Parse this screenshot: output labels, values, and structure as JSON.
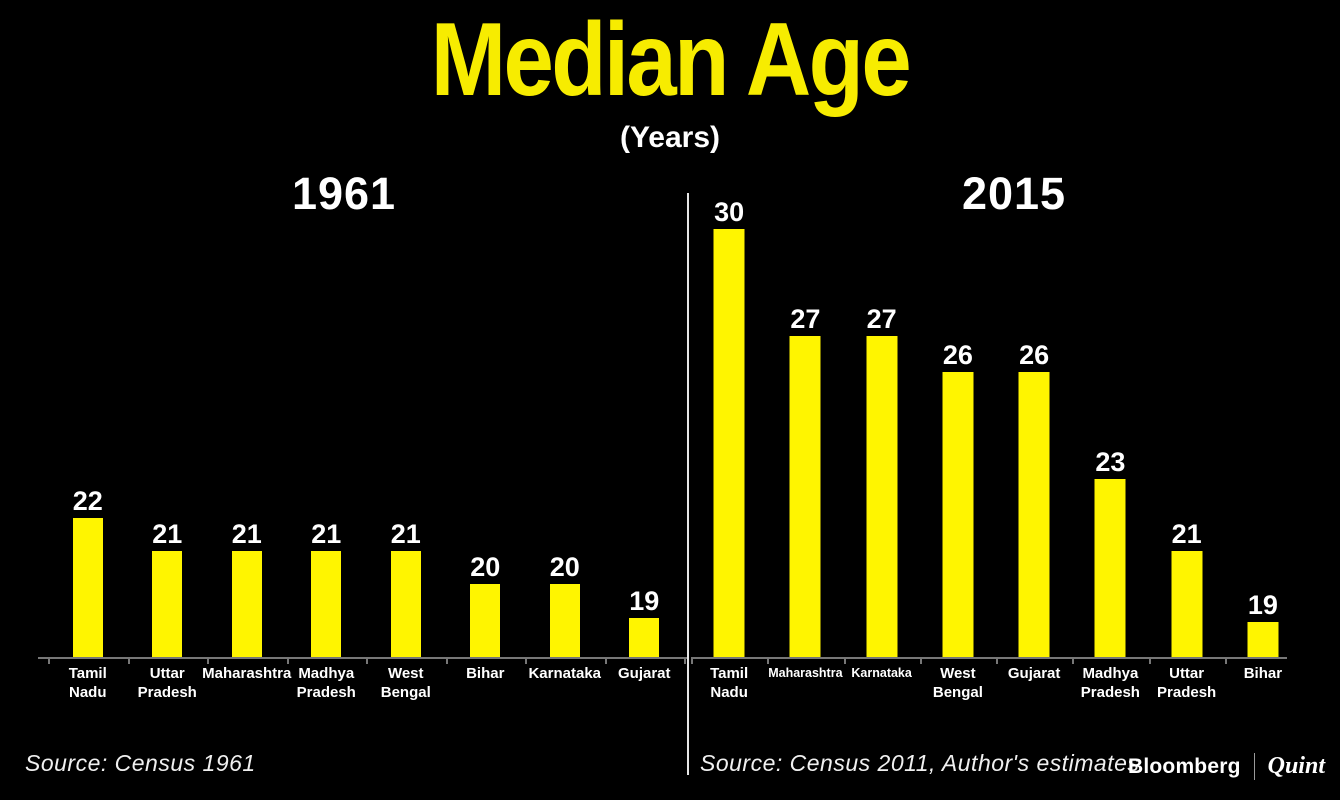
{
  "header": {
    "title": "Median Age",
    "subtitle": "(Years)"
  },
  "chart_data": [
    {
      "type": "bar",
      "title": "1961",
      "categories": [
        "Tamil Nadu",
        "Uttar Pradesh",
        "Maharashtra",
        "Madhya Pradesh",
        "West Bengal",
        "Bihar",
        "Karnataka",
        "Gujarat"
      ],
      "tick_labels": [
        "Tamil\nNadu",
        "Uttar\nPradesh",
        "Maharashtra",
        "Madhya\nPradesh",
        "West\nBengal",
        "Bihar",
        "Karnataka",
        "Gujarat"
      ],
      "values": [
        22,
        21,
        21,
        21,
        21,
        20,
        20,
        19
      ],
      "unit": "Years",
      "xlabel": "",
      "ylabel": "",
      "ylim": [
        17.8,
        31.8
      ],
      "grid": false,
      "legend": "none",
      "value_labels_shown": true,
      "bar_color": "#FFF500",
      "source": "Source: Census 1961"
    },
    {
      "type": "bar",
      "title": "2015",
      "categories": [
        "Tamil Nadu",
        "Maharashtra",
        "Karnataka",
        "West Bengal",
        "Gujarat",
        "Madhya Pradesh",
        "Uttar Pradesh",
        "Bihar"
      ],
      "tick_labels": [
        "Tamil\nNadu",
        "Maharashtra",
        "Karnataka",
        "West\nBengal",
        "Gujarat",
        "Madhya\nPradesh",
        "Uttar\nPradesh",
        "Bihar"
      ],
      "values": [
        30,
        27,
        27,
        26,
        26,
        23,
        21,
        19
      ],
      "unit": "Years",
      "xlabel": "",
      "ylabel": "",
      "ylim": [
        18,
        31.1
      ],
      "grid": false,
      "legend": "none",
      "value_labels_shown": true,
      "bar_color": "#FFF500",
      "source": "Source: Census 2011, Author's estimates"
    }
  ],
  "footer": {
    "brand": {
      "bloomberg": "Bloomberg",
      "divider": "|",
      "quint": "Quint"
    }
  },
  "colors": {
    "background": "#000000",
    "accent_yellow": "#F7EC00",
    "bar_yellow": "#FFF500",
    "text_white": "#FFFFFF",
    "axis_gray": "#777777",
    "divider_white": "#E6E6E6",
    "source_gray": "#F0F0F0"
  }
}
